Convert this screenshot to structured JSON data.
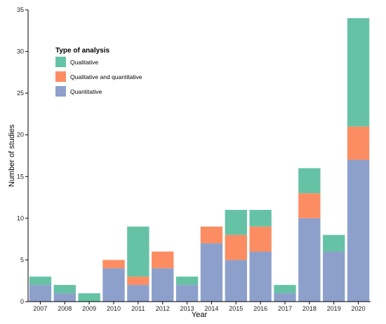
{
  "chart_data": {
    "type": "bar",
    "stacked": true,
    "xlabel": "Year",
    "ylabel": "Number of studies",
    "ylim": [
      0,
      35
    ],
    "yticks": [
      0,
      5,
      10,
      15,
      20,
      25,
      30,
      35
    ],
    "grid": false,
    "categories": [
      "2007",
      "2008",
      "2009",
      "2010",
      "2011",
      "2012",
      "2013",
      "2014",
      "2015",
      "2016",
      "2017",
      "2018",
      "2019",
      "2020"
    ],
    "legend": {
      "title": "Type of analysis",
      "position": "top-left",
      "entries": [
        "Qualitative",
        "Qualitative and quantitative",
        "Quantitative"
      ]
    },
    "series": [
      {
        "name": "Quantitative",
        "color": "#8DA0CB",
        "values": [
          2,
          1,
          0,
          4,
          2,
          4,
          2,
          7,
          5,
          6,
          1,
          10,
          6,
          17
        ]
      },
      {
        "name": "Qualitative and quantitative",
        "color": "#FC8D62",
        "values": [
          0,
          0,
          0,
          1,
          1,
          2,
          0,
          2,
          3,
          3,
          0,
          3,
          0,
          4
        ]
      },
      {
        "name": "Qualitative",
        "color": "#66C2A5",
        "values": [
          1,
          1,
          1,
          0,
          6,
          0,
          1,
          0,
          3,
          2,
          1,
          3,
          2,
          13
        ]
      }
    ]
  }
}
